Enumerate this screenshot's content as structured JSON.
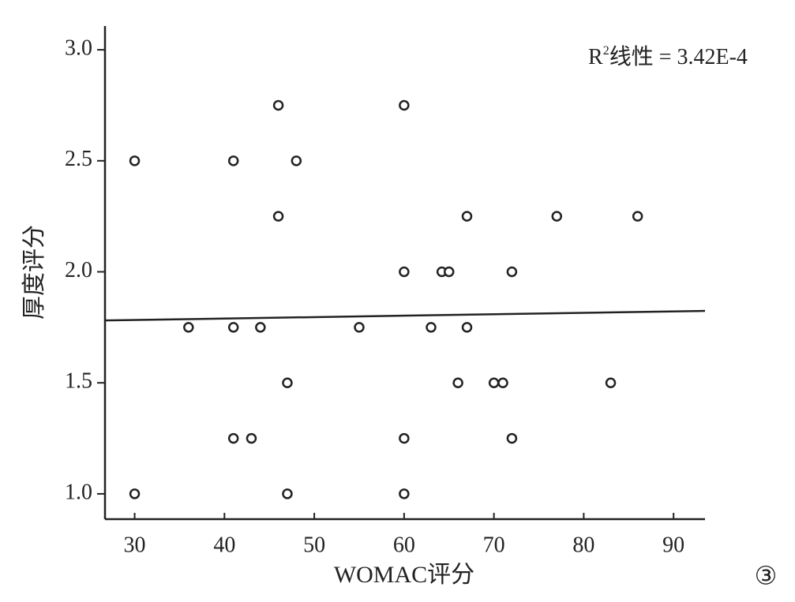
{
  "chart_data": {
    "type": "scatter",
    "x_label": "WOMAC评分",
    "y_label": "厚度评分",
    "annotation": {
      "base": "R",
      "sup": "2",
      "rest": "线性 = 3.42E-4"
    },
    "figure_label": "③",
    "xlim": [
      26.7,
      93.5
    ],
    "ylim": [
      0.886,
      3.107
    ],
    "xticks": [
      30,
      40,
      50,
      60,
      70,
      80,
      90
    ],
    "yticks": [
      {
        "value": 1,
        "label": "1.0"
      },
      1.5,
      {
        "value": 2,
        "label": "2.0"
      },
      2.5,
      {
        "value": 3,
        "label": "3.0"
      }
    ],
    "color": "#222222",
    "x": [
      30,
      30,
      36,
      41,
      41,
      41,
      43,
      44,
      46,
      46,
      47,
      47,
      48,
      55,
      60,
      60,
      60,
      60,
      63,
      64.2,
      65,
      66,
      67,
      67,
      70,
      71,
      72,
      72,
      77,
      83,
      86
    ],
    "values": [
      2.5,
      1.0,
      1.75,
      2.5,
      1.75,
      1.25,
      1.25,
      1.75,
      2.75,
      2.25,
      1.0,
      1.5,
      2.5,
      1.75,
      2.75,
      2.0,
      1.25,
      1.0,
      1.75,
      2.0,
      2.0,
      1.5,
      2.25,
      1.75,
      1.5,
      1.5,
      2.0,
      1.25,
      2.25,
      1.5,
      2.25
    ],
    "trend_line": {
      "x": [
        26.7,
        93.5
      ],
      "y": [
        1.781,
        1.824
      ]
    }
  }
}
